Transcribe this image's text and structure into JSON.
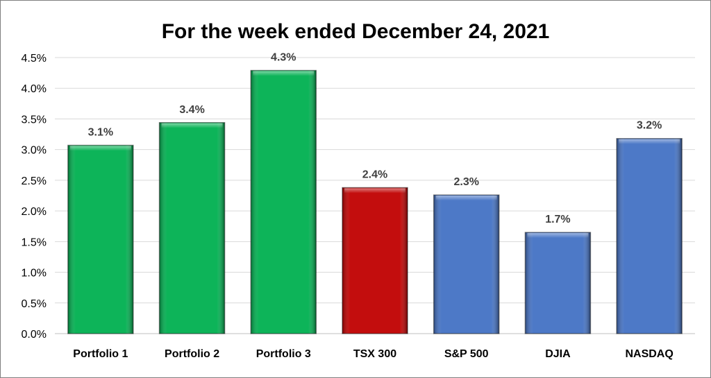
{
  "chart_data": {
    "type": "bar",
    "title": "For the week ended December 24, 2021",
    "xlabel": "",
    "ylabel": "",
    "categories": [
      "Portfolio 1",
      "Portfolio 2",
      "Portfolio 3",
      "TSX 300",
      "S&P 500",
      "DJIA",
      "NASDAQ"
    ],
    "values": [
      3.07,
      3.44,
      4.29,
      2.38,
      2.26,
      1.65,
      3.18
    ],
    "data_labels": [
      "3.1%",
      "3.4%",
      "4.3%",
      "2.4%",
      "2.3%",
      "1.7%",
      "3.2%"
    ],
    "bar_colors": [
      "#00b050",
      "#00b050",
      "#00b050",
      "#c00000",
      "#4472c4",
      "#4472c4",
      "#4472c4"
    ],
    "ylim": [
      0,
      4.5
    ],
    "yticks": [
      "0.0%",
      "0.5%",
      "1.0%",
      "1.5%",
      "2.0%",
      "2.5%",
      "3.0%",
      "3.5%",
      "4.0%",
      "4.5%"
    ],
    "grid": true,
    "legend": "none"
  }
}
